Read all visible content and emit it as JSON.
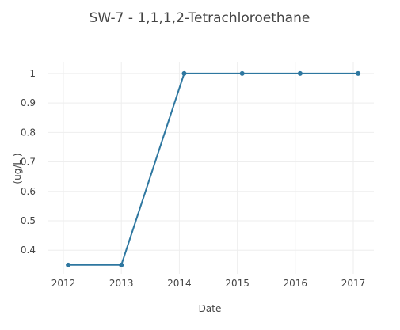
{
  "chart_data": {
    "type": "line",
    "title": "SW-7 - 1,1,1,2-Tetrachloroethane",
    "xlabel": "Date",
    "ylabel": "(ug/L )",
    "x": [
      "2012",
      "2013",
      "2014",
      "2015",
      "2016",
      "2017"
    ],
    "xlim": [
      "2012",
      "2017"
    ],
    "ylim": [
      0.32,
      1.04
    ],
    "yticks": [
      "0.4",
      "0.5",
      "0.6",
      "0.7",
      "0.8",
      "0.9",
      "1"
    ],
    "grid": true,
    "legend": "none",
    "series": [
      {
        "color": "#2e77a0",
        "points": [
          {
            "x": "2012-02",
            "y": 0.35
          },
          {
            "x": "2013-01",
            "y": 0.35
          },
          {
            "x": "2014-02",
            "y": 1
          },
          {
            "x": "2015-02",
            "y": 1
          },
          {
            "x": "2016-02",
            "y": 1
          },
          {
            "x": "2017-02",
            "y": 1
          }
        ]
      }
    ]
  }
}
